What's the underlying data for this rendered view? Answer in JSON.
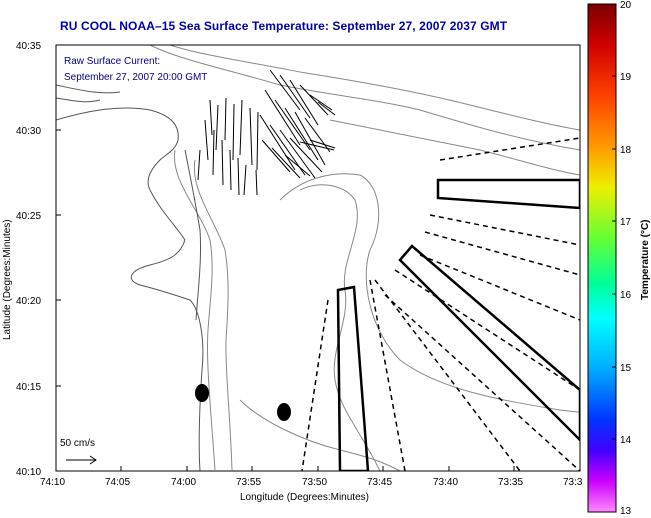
{
  "title": "RU COOL  NOAA–15  Sea Surface Temperature:  September 27, 2007 2037 GMT",
  "inset": {
    "line1": "Raw Surface Current:",
    "line2": "September 27, 2007 20:00 GMT"
  },
  "axes": {
    "xlabel": "Longitude (Degrees:Minutes)",
    "ylabel": "Latitude (Degrees:Minutes)",
    "x_ticks": [
      "74:10",
      "74:05",
      "74:00",
      "73:55",
      "73:50",
      "73:45",
      "73:40",
      "73:35",
      "73:3"
    ],
    "y_ticks": [
      "40:35",
      "40:30",
      "40:25",
      "40:20",
      "40:15",
      "40:10"
    ]
  },
  "scale_label": "50 cm/s",
  "colorbar": {
    "label": "Temperature (°C)",
    "ticks": [
      "20",
      "19",
      "18",
      "17",
      "16",
      "15",
      "14",
      "13"
    ],
    "colors": [
      "#7a0000",
      "#d00000",
      "#ff4000",
      "#ff9900",
      "#eeee00",
      "#66ff33",
      "#00ff99",
      "#00ffff",
      "#00aaff",
      "#0033ff",
      "#4400ff",
      "#cc00ff",
      "#ff88ff"
    ]
  }
}
